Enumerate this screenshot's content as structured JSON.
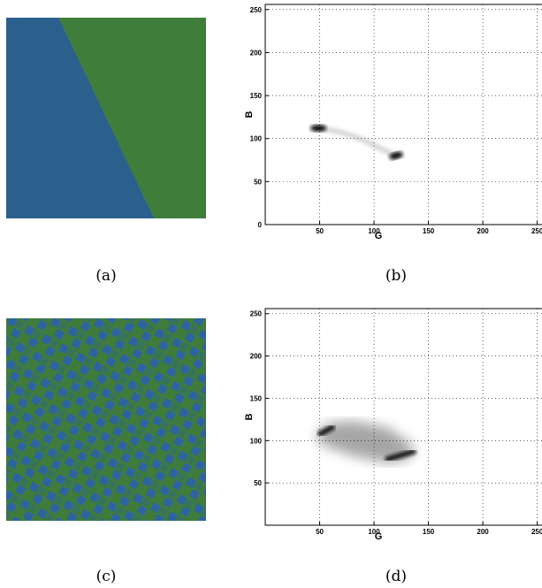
{
  "panels": [
    {
      "caption": "(a)"
    },
    {
      "caption": "(b)",
      "xlabel": "G",
      "ylabel": "B",
      "xlim": [
        0,
        256
      ],
      "ylim": [
        0,
        256
      ],
      "xticks": [
        50,
        100,
        150,
        200,
        250
      ],
      "yticks": [
        0,
        50,
        100,
        150,
        200,
        250
      ],
      "grid": true
    },
    {
      "caption": "(c)"
    },
    {
      "caption": "(d)",
      "xlabel": "G",
      "ylabel": "B",
      "xlim": [
        0,
        256
      ],
      "ylim": [
        0,
        256
      ],
      "xticks": [
        50,
        100,
        150,
        200,
        250
      ],
      "yticks": [
        50,
        100,
        150,
        200,
        250
      ],
      "grid": true
    }
  ]
}
